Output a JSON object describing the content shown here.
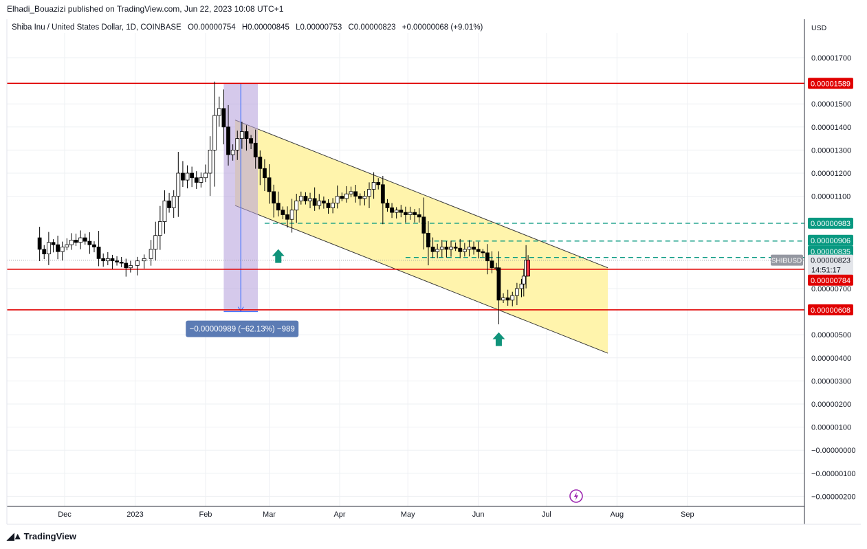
{
  "publish": {
    "author": "Elhadi_Bouazizi",
    "text": "Elhadi_Bouazizi published on TradingView.com, Jun 22, 2023 10:08 UTC+1"
  },
  "legend": {
    "symbol": "Shiba Inu / United States Dollar, 1D, COINBASE",
    "open": "O0.00000754",
    "high": "H0.00000845",
    "low": "L0.00000753",
    "close": "C0.00000823",
    "change": "+0.00000068 (+9.01%)"
  },
  "axis": {
    "currency": "USD",
    "y_ticks": [
      "0.00001700",
      "0.00001500",
      "0.00001400",
      "0.00001300",
      "0.00001200",
      "0.00001100",
      "0.00000700",
      "0.00000500",
      "0.00000400",
      "0.00000300",
      "0.00000200",
      "0.00000100",
      "−0.00000000",
      "−0.00000100",
      "−0.00000200"
    ],
    "x_ticks": [
      "Dec",
      "2023",
      "Feb",
      "Mar",
      "Apr",
      "May",
      "Jun",
      "Jul",
      "Aug",
      "Sep"
    ]
  },
  "price_labels": {
    "res_top": "0.00001589",
    "level_983": "0.00000983",
    "level_906": "0.00000906",
    "level_835": "0.00000835",
    "symbol_tag": "SHIBUSD",
    "current": "0.00000823",
    "countdown": "14:51:17",
    "level_784": "0.00000784",
    "support": "0.00000608"
  },
  "measure": {
    "label": "−0.00000989 (−62.13%) −989"
  },
  "footer": {
    "brand": "TradingView"
  },
  "colors": {
    "up": "#089981",
    "down": "#f23645",
    "resistance": "#e00000",
    "channel_fill": "#fff3a8",
    "measure_fill": "#b39ddb",
    "dashed": "#089981",
    "arrow": "#10937a",
    "measure_label_bg": "#5b7bb4"
  },
  "chart_data": {
    "type": "candlestick",
    "symbol": "SHIBUSD",
    "timeframe": "1D",
    "x_range": [
      "2022-11-18",
      "2023-09-30"
    ],
    "y_range": [
      -2e-06,
      1.83e-05
    ],
    "last_candle": {
      "date": "2023-06-22",
      "open": 7.54e-06,
      "high": 8.45e-06,
      "low": 7.53e-06,
      "close": 8.23e-06
    },
    "horizontal_levels": [
      1.589e-05,
      7.84e-06,
      6.08e-06
    ],
    "dashed_levels": [
      9.83e-06,
      9.06e-06,
      8.35e-06
    ],
    "channel": {
      "upper": [
        [
          "2023-02-14",
          1.43e-05
        ],
        [
          "2023-07-28",
          7.9e-06
        ]
      ],
      "lower": [
        [
          "2023-02-14",
          1.06e-05
        ],
        [
          "2023-07-28",
          4.2e-06
        ]
      ]
    },
    "measure": {
      "from": 1.589e-05,
      "to": 6e-06,
      "change": -9.89e-06,
      "percent": -62.13
    },
    "support_arrows": [
      [
        "2023-03-05",
        9.6e-06
      ],
      [
        "2023-06-10",
        6e-06
      ]
    ],
    "closes": [
      [
        "2022-11-18",
        9.2e-06
      ],
      [
        "2022-11-20",
        8.7e-06
      ],
      [
        "2022-11-22",
        8.5e-06
      ],
      [
        "2022-11-24",
        9e-06
      ],
      [
        "2022-11-26",
        8.9e-06
      ],
      [
        "2022-11-28",
        8.6e-06
      ],
      [
        "2022-11-30",
        8.8e-06
      ],
      [
        "2022-12-02",
        8.9e-06
      ],
      [
        "2022-12-04",
        9.1e-06
      ],
      [
        "2022-12-06",
        9e-06
      ],
      [
        "2022-12-08",
        9.2e-06
      ],
      [
        "2022-12-10",
        9.05e-06
      ],
      [
        "2022-12-12",
        8.9e-06
      ],
      [
        "2022-12-14",
        8.8e-06
      ],
      [
        "2022-12-16",
        8.3e-06
      ],
      [
        "2022-12-18",
        8.2e-06
      ],
      [
        "2022-12-20",
        8.3e-06
      ],
      [
        "2022-12-22",
        8.2e-06
      ],
      [
        "2022-12-24",
        8.15e-06
      ],
      [
        "2022-12-26",
        8.1e-06
      ],
      [
        "2022-12-28",
        7.9e-06
      ],
      [
        "2022-12-30",
        8e-06
      ],
      [
        "2023-01-02",
        8.2e-06
      ],
      [
        "2023-01-05",
        8.3e-06
      ],
      [
        "2023-01-08",
        8.7e-06
      ],
      [
        "2023-01-10",
        9.3e-06
      ],
      [
        "2023-01-12",
        9.9e-06
      ],
      [
        "2023-01-14",
        1.08e-05
      ],
      [
        "2023-01-16",
        1.05e-05
      ],
      [
        "2023-01-18",
        1.1e-05
      ],
      [
        "2023-01-20",
        1.2e-05
      ],
      [
        "2023-01-22",
        1.17e-05
      ],
      [
        "2023-01-24",
        1.2e-05
      ],
      [
        "2023-01-26",
        1.18e-05
      ],
      [
        "2023-01-28",
        1.16e-05
      ],
      [
        "2023-01-30",
        1.18e-05
      ],
      [
        "2023-02-01",
        1.2e-05
      ],
      [
        "2023-02-03",
        1.3e-05
      ],
      [
        "2023-02-05",
        1.45e-05
      ],
      [
        "2023-02-07",
        1.48e-05
      ],
      [
        "2023-02-09",
        1.4e-05
      ],
      [
        "2023-02-11",
        1.28e-05
      ],
      [
        "2023-02-13",
        1.3e-05
      ],
      [
        "2023-02-15",
        1.35e-05
      ],
      [
        "2023-02-17",
        1.38e-05
      ],
      [
        "2023-02-19",
        1.35e-05
      ],
      [
        "2023-02-21",
        1.33e-05
      ],
      [
        "2023-02-23",
        1.27e-05
      ],
      [
        "2023-02-25",
        1.22e-05
      ],
      [
        "2023-02-27",
        1.18e-05
      ],
      [
        "2023-03-01",
        1.12e-05
      ],
      [
        "2023-03-03",
        1.07e-05
      ],
      [
        "2023-03-05",
        1.04e-05
      ],
      [
        "2023-03-07",
        1.02e-05
      ],
      [
        "2023-03-09",
        1e-05
      ],
      [
        "2023-03-11",
        1.04e-05
      ],
      [
        "2023-03-13",
        1.08e-05
      ],
      [
        "2023-03-15",
        1.1e-05
      ],
      [
        "2023-03-17",
        1.08e-05
      ],
      [
        "2023-03-19",
        1.09e-05
      ],
      [
        "2023-03-21",
        1.06e-05
      ],
      [
        "2023-03-23",
        1.08e-05
      ],
      [
        "2023-03-25",
        1.07e-05
      ],
      [
        "2023-03-27",
        1.05e-05
      ],
      [
        "2023-03-29",
        1.07e-05
      ],
      [
        "2023-03-31",
        1.1e-05
      ],
      [
        "2023-04-02",
        1.09e-05
      ],
      [
        "2023-04-04",
        1.11e-05
      ],
      [
        "2023-04-06",
        1.12e-05
      ],
      [
        "2023-04-08",
        1.1e-05
      ],
      [
        "2023-04-10",
        1.09e-05
      ],
      [
        "2023-04-12",
        1.1e-05
      ],
      [
        "2023-04-14",
        1.13e-05
      ],
      [
        "2023-04-16",
        1.16e-05
      ],
      [
        "2023-04-18",
        1.15e-05
      ],
      [
        "2023-04-20",
        1.07e-05
      ],
      [
        "2023-04-22",
        1.05e-05
      ],
      [
        "2023-04-24",
        1.03e-05
      ],
      [
        "2023-04-26",
        1.04e-05
      ],
      [
        "2023-04-28",
        1.03e-05
      ],
      [
        "2023-04-30",
        1.02e-05
      ],
      [
        "2023-05-02",
        1.03e-05
      ],
      [
        "2023-05-04",
        1.02e-05
      ],
      [
        "2023-05-06",
        1.01e-05
      ],
      [
        "2023-05-08",
        9.4e-06
      ],
      [
        "2023-05-10",
        8.8e-06
      ],
      [
        "2023-05-12",
        8.6e-06
      ],
      [
        "2023-05-14",
        8.7e-06
      ],
      [
        "2023-05-16",
        8.8e-06
      ],
      [
        "2023-05-18",
        8.7e-06
      ],
      [
        "2023-05-20",
        8.8e-06
      ],
      [
        "2023-05-22",
        8.75e-06
      ],
      [
        "2023-05-24",
        8.6e-06
      ],
      [
        "2023-05-26",
        8.7e-06
      ],
      [
        "2023-05-28",
        8.8e-06
      ],
      [
        "2023-05-30",
        8.7e-06
      ],
      [
        "2023-06-01",
        8.6e-06
      ],
      [
        "2023-06-03",
        8.55e-06
      ],
      [
        "2023-06-05",
        8.2e-06
      ],
      [
        "2023-06-07",
        7.9e-06
      ],
      [
        "2023-06-09",
        7.9e-06
      ],
      [
        "2023-06-10",
        6.5e-06
      ],
      [
        "2023-06-12",
        6.6e-06
      ],
      [
        "2023-06-14",
        6.5e-06
      ],
      [
        "2023-06-16",
        6.7e-06
      ],
      [
        "2023-06-18",
        7e-06
      ],
      [
        "2023-06-20",
        7.2e-06
      ],
      [
        "2023-06-21",
        7.54e-06
      ],
      [
        "2023-06-22",
        8.23e-06
      ]
    ]
  }
}
